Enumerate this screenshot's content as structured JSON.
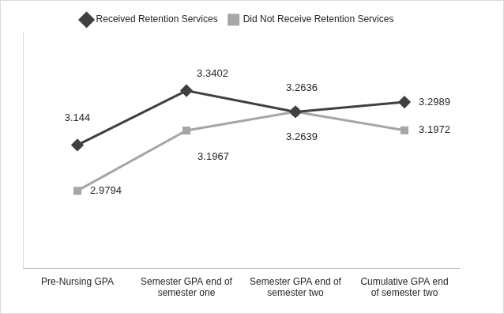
{
  "chart_data": {
    "type": "line",
    "categories": [
      "Pre-Nursing GPA",
      "Semester GPA end of semester one",
      "Semester GPA end of semester two",
      "Cumulative GPA end of semester two"
    ],
    "series": [
      {
        "name": "Received Retention Services",
        "color": "#404040",
        "marker": "diamond",
        "values": [
          3.144,
          3.3402,
          3.2636,
          3.2989
        ]
      },
      {
        "name": "Did Not Receive Retention Services",
        "color": "#a6a6a6",
        "marker": "square",
        "values": [
          2.9794,
          3.1967,
          3.2639,
          3.1972
        ]
      }
    ],
    "ylim": [
      2.7,
      3.55
    ],
    "grid": false,
    "legend": "top",
    "data_labels": true,
    "tick_labels": "x"
  }
}
